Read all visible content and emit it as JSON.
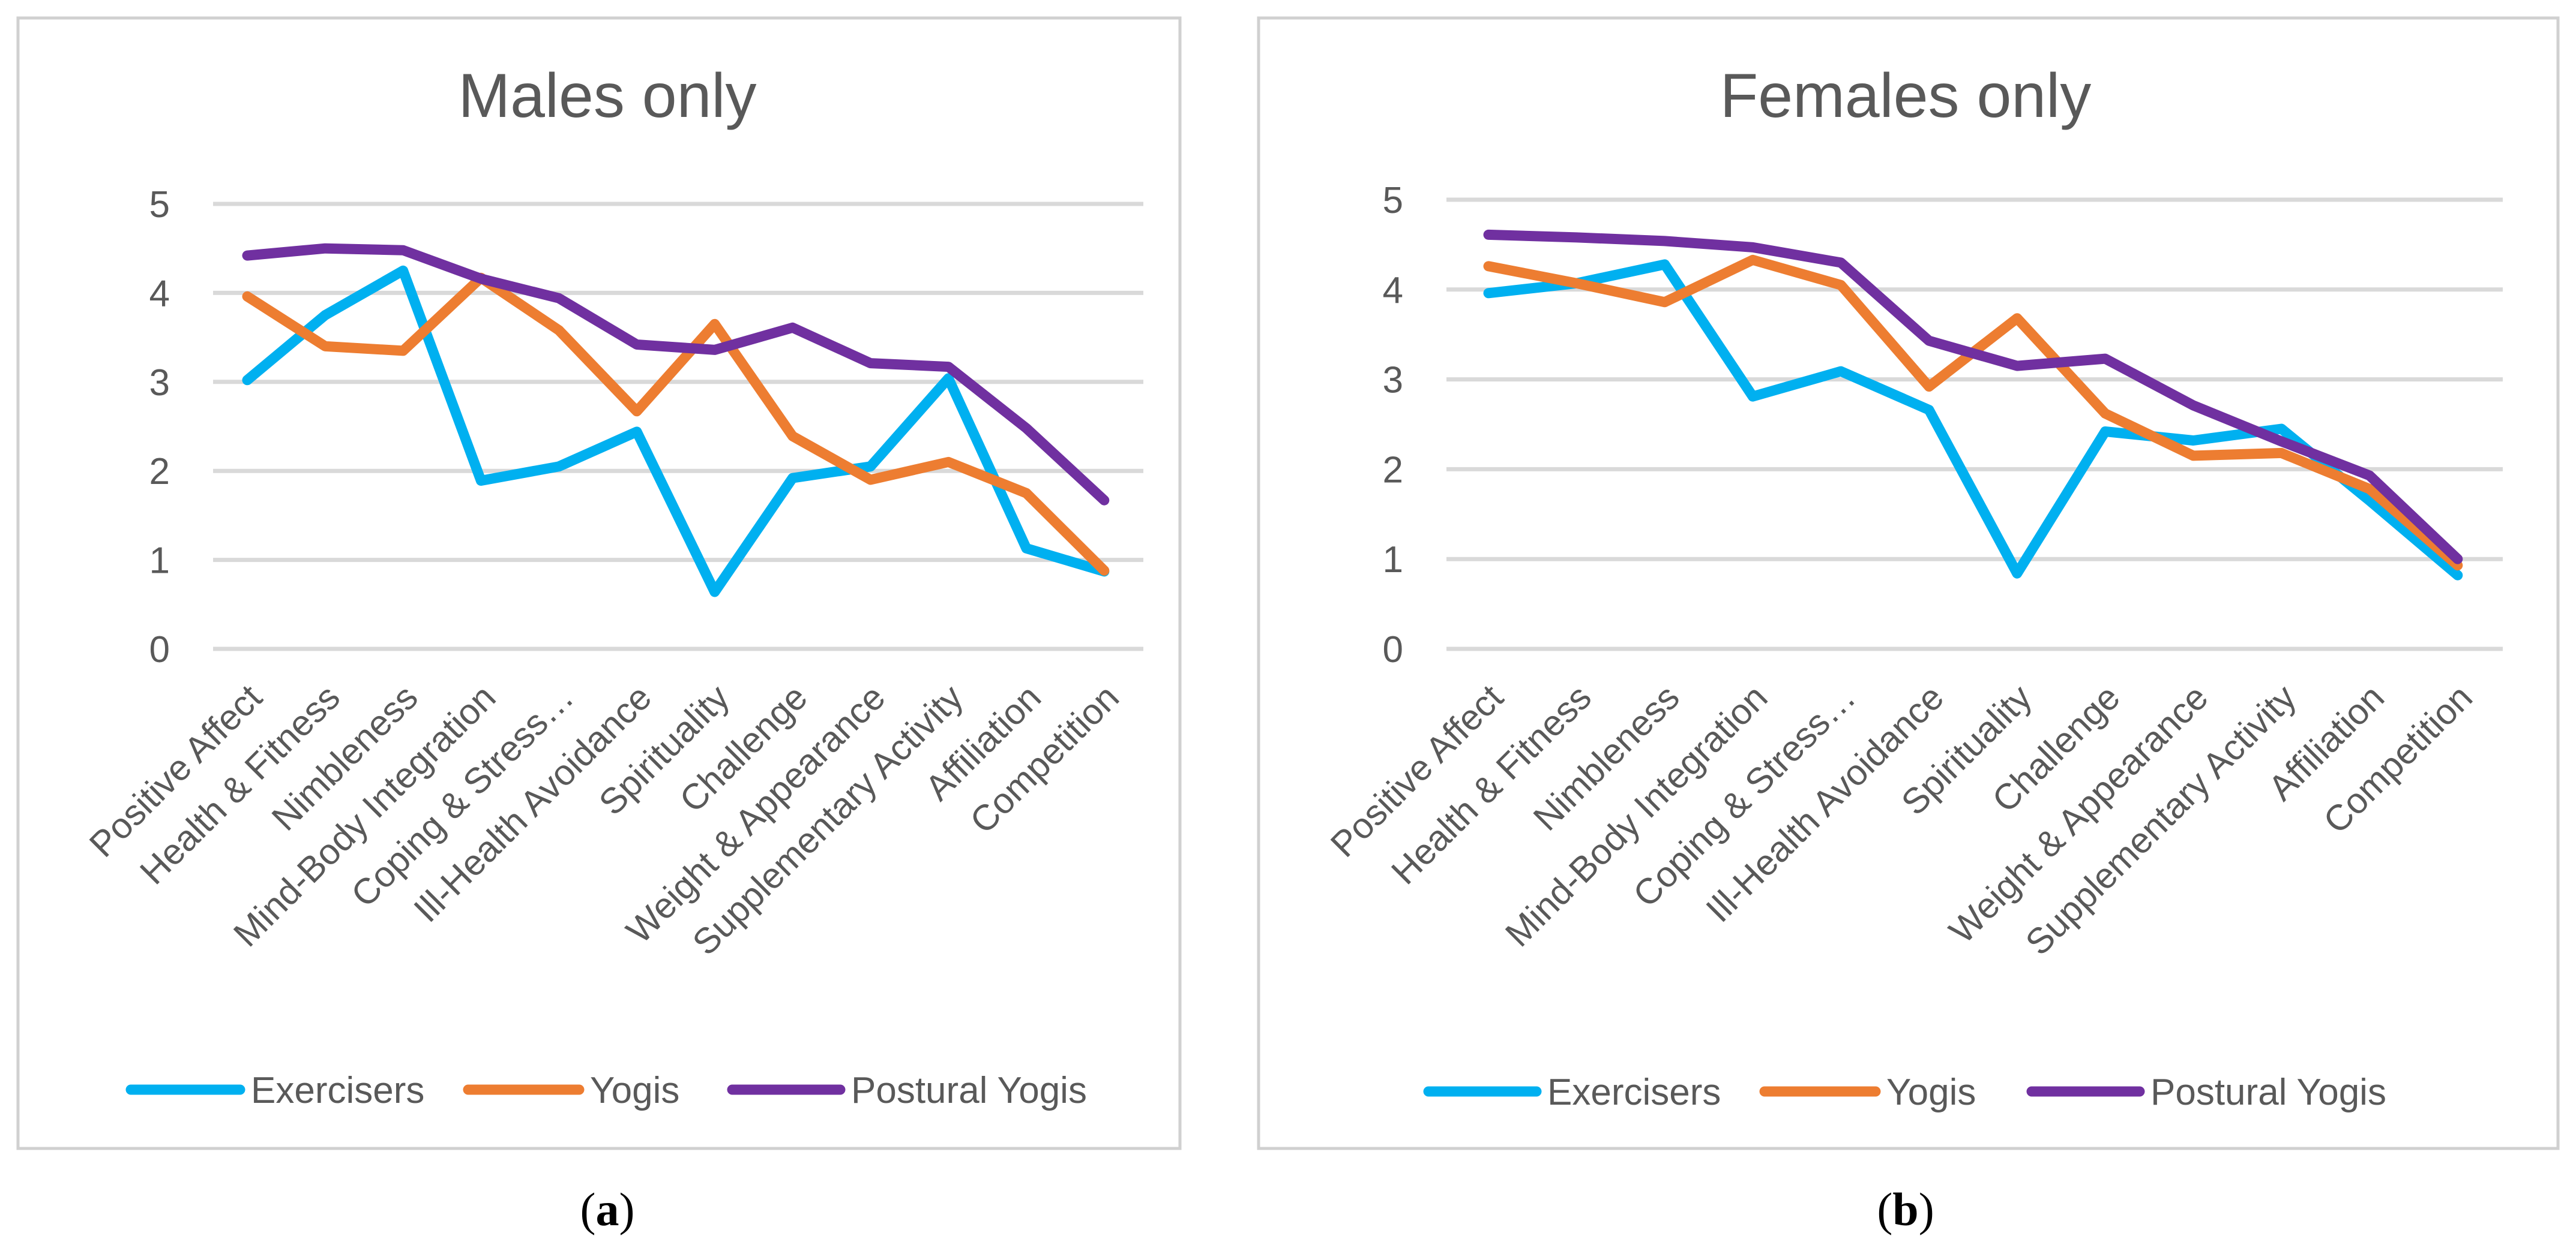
{
  "chart_data": [
    {
      "type": "line",
      "title": "Males only",
      "caption_letter": "a",
      "categories": [
        "Positive Affect",
        "Health & Fitness",
        "Nimbleness",
        "Mind-Body Integration",
        "Coping & Stress…",
        "Ill-Health Avoidance",
        "Spirituality",
        "Challenge",
        "Weight &  Appearance",
        "Supplementary Activity",
        "Affiliation",
        "Competition"
      ],
      "yticks": [
        "0",
        "1",
        "2",
        "3",
        "4",
        "5"
      ],
      "ylim": [
        0,
        5
      ],
      "series": [
        {
          "name": "Exercisers",
          "color": "#00b0f0",
          "values": [
            3.02,
            3.75,
            4.25,
            1.89,
            2.05,
            2.44,
            0.64,
            1.92,
            2.05,
            3.04,
            1.13,
            0.87
          ]
        },
        {
          "name": "Yogis",
          "color": "#ed7d31",
          "values": [
            3.96,
            3.4,
            3.35,
            4.17,
            3.58,
            2.67,
            3.65,
            2.39,
            1.9,
            2.1,
            1.75,
            0.88
          ]
        },
        {
          "name": "Postural Yogis",
          "color": "#7030a0",
          "values": [
            4.42,
            4.5,
            4.48,
            4.16,
            3.94,
            3.42,
            3.36,
            3.61,
            3.21,
            3.17,
            2.48,
            1.67
          ]
        }
      ]
    },
    {
      "type": "line",
      "title": "Females only",
      "caption_letter": "b",
      "categories": [
        "Positive Affect",
        "Health & Fitness",
        "Nimbleness",
        "Mind-Body Integration",
        "Coping & Stress…",
        "Ill-Health Avoidance",
        "Spirituality",
        "Challenge",
        "Weight &  Appearance",
        "Supplementary Activity",
        "Affiliation",
        "Competition"
      ],
      "yticks": [
        "0",
        "1",
        "2",
        "3",
        "4",
        "5"
      ],
      "ylim": [
        0,
        5
      ],
      "series": [
        {
          "name": "Exercisers",
          "color": "#00b0f0",
          "values": [
            3.96,
            4.07,
            4.28,
            2.81,
            3.09,
            2.66,
            0.84,
            2.42,
            2.32,
            2.45,
            1.65,
            0.82
          ]
        },
        {
          "name": "Yogis",
          "color": "#ed7d31",
          "values": [
            4.26,
            4.07,
            3.86,
            4.33,
            4.05,
            2.92,
            3.68,
            2.62,
            2.15,
            2.18,
            1.78,
            0.93
          ]
        },
        {
          "name": "Postural Yogis",
          "color": "#7030a0",
          "values": [
            4.61,
            4.58,
            4.54,
            4.47,
            4.3,
            3.43,
            3.15,
            3.23,
            2.71,
            2.31,
            1.93,
            1.0
          ]
        }
      ]
    }
  ]
}
